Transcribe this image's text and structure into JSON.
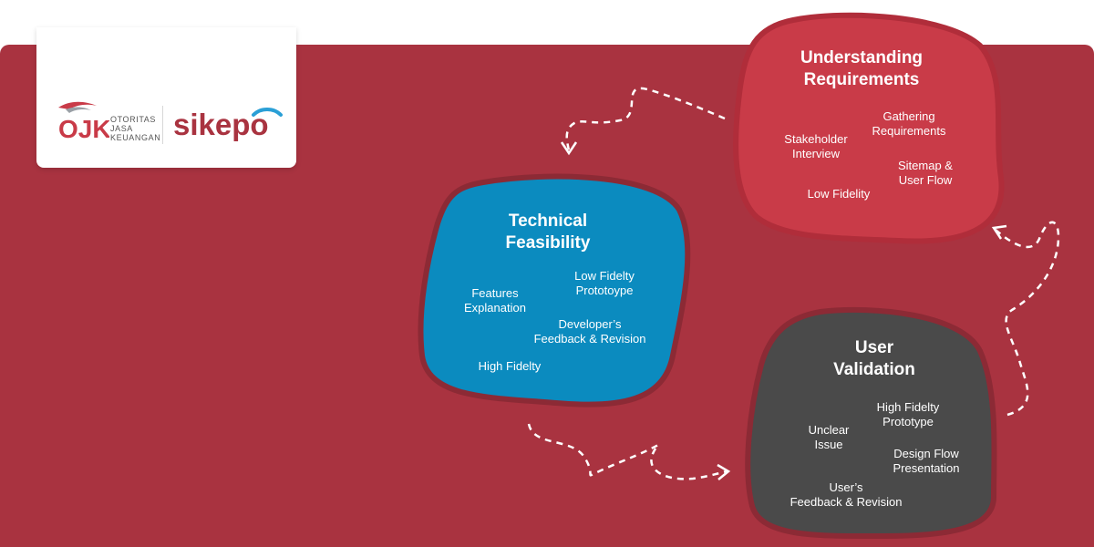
{
  "logo": {
    "ojk_letters": "OJK",
    "ojk_line1": "OTORITAS",
    "ojk_line2": "JASA",
    "ojk_line3": "KEUANGAN",
    "sikepo": "sikepo"
  },
  "colors": {
    "background_panel": "#a93340",
    "understanding_fill": "#c93b48",
    "technical_fill": "#0b8bbf",
    "validation_fill": "#4a4a4a",
    "arrow": "#ffffff"
  },
  "nodes": {
    "understanding": {
      "title_line1": "Understanding",
      "title_line2": "Requirements",
      "items": [
        "Gathering\nRequirements",
        "Stakeholder\nInterview",
        "Sitemap &\nUser Flow",
        "Low Fidelity"
      ]
    },
    "technical": {
      "title_line1": "Technical",
      "title_line2": "Feasibility",
      "items": [
        "Low Fidelty\nPrototoype",
        "Features\nExplanation",
        "Developer’s\nFeedback & Revision",
        "High Fidelty"
      ]
    },
    "validation": {
      "title_line1": "User",
      "title_line2": "Validation",
      "items": [
        "High Fidelty\nPrototype",
        "Unclear\nIssue",
        "Design Flow\nPresentation",
        "User’s\nFeedback & Revision"
      ]
    }
  }
}
